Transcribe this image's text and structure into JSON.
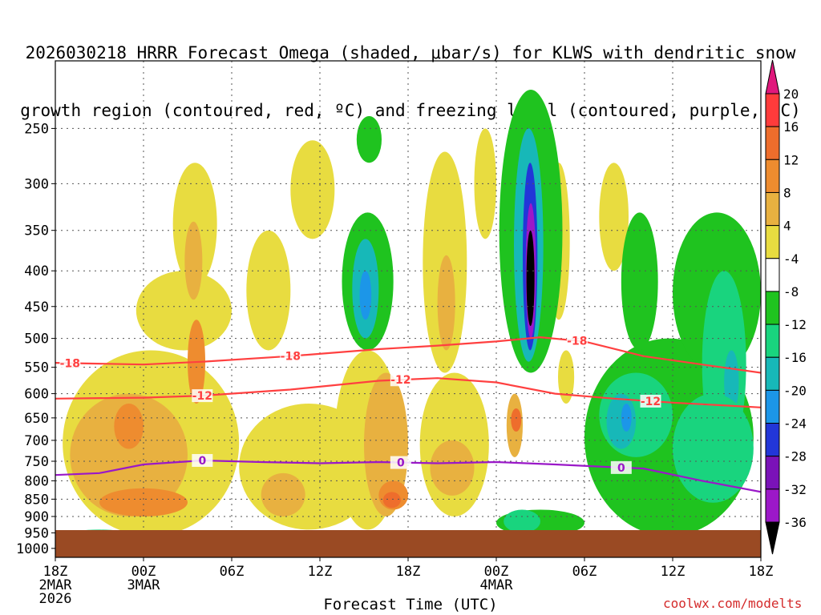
{
  "title_line1": "2026030218 HRRR Forecast Omega (shaded, μbar/s) for KLWS with dendritic snow",
  "title_line2": "growth region (contoured, red, ºC) and freezing level (contoured, purple, ºC)",
  "credit": "coolwx.com/modelts",
  "chart_data": {
    "type": "heatmap",
    "title": "2026030218 HRRR Forecast Omega (shaded, μbar/s) for KLWS with dendritic snow growth region (contoured, red, ºC) and freezing level (contoured, purple, ºC)",
    "xlabel": "Forecast Time (UTC)",
    "ylabel": "",
    "y_axis": {
      "type": "pressure-log",
      "units": "hPa",
      "range": [
        1030,
        200
      ],
      "ticks": [
        250,
        300,
        350,
        400,
        450,
        500,
        550,
        600,
        650,
        700,
        750,
        800,
        850,
        900,
        950,
        1000
      ]
    },
    "x_axis": {
      "range_hours": [
        0,
        48
      ],
      "ticks": [
        {
          "hour": 0,
          "label": "18Z",
          "sub": [
            "2MAR",
            "2026"
          ]
        },
        {
          "hour": 6,
          "label": "00Z",
          "sub": [
            "3MAR"
          ]
        },
        {
          "hour": 12,
          "label": "06Z",
          "sub": []
        },
        {
          "hour": 18,
          "label": "12Z",
          "sub": []
        },
        {
          "hour": 24,
          "label": "18Z",
          "sub": []
        },
        {
          "hour": 30,
          "label": "00Z",
          "sub": [
            "4MAR"
          ]
        },
        {
          "hour": 36,
          "label": "06Z",
          "sub": []
        },
        {
          "hour": 42,
          "label": "12Z",
          "sub": []
        },
        {
          "hour": 48,
          "label": "18Z",
          "sub": []
        }
      ]
    },
    "colorbar": {
      "levels": [
        "20",
        "16",
        "12",
        "8",
        "4",
        "-4",
        "-8",
        "-12",
        "-16",
        "-20",
        "-24",
        "-28",
        "-32",
        "-36"
      ],
      "colors": [
        "#ff3b3b",
        "#ee6d2c",
        "#ee8c2f",
        "#e8b140",
        "#e8dc40",
        "#ffffff",
        "#1fc31f",
        "#19d47e",
        "#17b8b8",
        "#1c96e8",
        "#2236d8",
        "#7a12b8",
        "#9c18c8",
        "#9a9a9a",
        "#000000"
      ],
      "top_color": "#e0187c"
    },
    "omega_cells": [
      {
        "t0": 0.5,
        "t1": 12.5,
        "p0": 520,
        "p1": 960,
        "v": 6
      },
      {
        "t0": 1,
        "t1": 9,
        "p0": 600,
        "p1": 900,
        "v": 10
      },
      {
        "t0": 4,
        "t1": 6,
        "p0": 620,
        "p1": 720,
        "v": 14
      },
      {
        "t0": 3,
        "t1": 9,
        "p0": 820,
        "p1": 900,
        "v": 14
      },
      {
        "t0": 5.5,
        "t1": 12,
        "p0": 400,
        "p1": 520,
        "v": 6
      },
      {
        "t0": 8,
        "t1": 11,
        "p0": 280,
        "p1": 420,
        "v": 6
      },
      {
        "t0": 8.8,
        "t1": 10,
        "p0": 340,
        "p1": 440,
        "v": 10
      },
      {
        "t0": 9,
        "t1": 10.2,
        "p0": 470,
        "p1": 620,
        "v": 14
      },
      {
        "t0": 13,
        "t1": 16,
        "p0": 350,
        "p1": 520,
        "v": 6
      },
      {
        "t0": 12.5,
        "t1": 22,
        "p0": 620,
        "p1": 940,
        "v": 6
      },
      {
        "t0": 14,
        "t1": 17,
        "p0": 780,
        "p1": 900,
        "v": 10
      },
      {
        "t0": 19,
        "t1": 23.5,
        "p0": 520,
        "p1": 940,
        "v": 6
      },
      {
        "t0": 21,
        "t1": 24,
        "p0": 560,
        "p1": 900,
        "v": 10
      },
      {
        "t0": 22,
        "t1": 24,
        "p0": 800,
        "p1": 880,
        "v": 14
      },
      {
        "t0": 22.3,
        "t1": 23.5,
        "p0": 830,
        "p1": 875,
        "v": 18
      },
      {
        "t0": 16,
        "t1": 19,
        "p0": 260,
        "p1": 360,
        "v": 6
      },
      {
        "t0": 25,
        "t1": 28,
        "p0": 270,
        "p1": 560,
        "v": 6
      },
      {
        "t0": 26,
        "t1": 27.2,
        "p0": 380,
        "p1": 520,
        "v": 10
      },
      {
        "t0": 24.8,
        "t1": 29.5,
        "p0": 560,
        "p1": 900,
        "v": 6
      },
      {
        "t0": 25.5,
        "t1": 28.5,
        "p0": 700,
        "p1": 840,
        "v": 10
      },
      {
        "t0": 28.5,
        "t1": 30,
        "p0": 250,
        "p1": 360,
        "v": 6
      },
      {
        "t0": 30.7,
        "t1": 31.8,
        "p0": 600,
        "p1": 740,
        "v": 10
      },
      {
        "t0": 31,
        "t1": 31.7,
        "p0": 630,
        "p1": 680,
        "v": 18
      },
      {
        "t0": 33.5,
        "t1": 35,
        "p0": 280,
        "p1": 470,
        "v": 6
      },
      {
        "t0": 34.2,
        "t1": 35.3,
        "p0": 520,
        "p1": 620,
        "v": 6
      },
      {
        "t0": 37,
        "t1": 39,
        "p0": 280,
        "p1": 400,
        "v": 6
      },
      {
        "t0": 19.5,
        "t1": 23,
        "p0": 330,
        "p1": 520,
        "v": -6
      },
      {
        "t0": 20.2,
        "t1": 22,
        "p0": 360,
        "p1": 500,
        "v": -14
      },
      {
        "t0": 20.7,
        "t1": 21.5,
        "p0": 400,
        "p1": 470,
        "v": -18
      },
      {
        "t0": 20.5,
        "t1": 22.2,
        "p0": 240,
        "p1": 280,
        "v": -6
      },
      {
        "t0": 30.2,
        "t1": 34.5,
        "p0": 220,
        "p1": 560,
        "v": -6
      },
      {
        "t0": 31.2,
        "t1": 33.2,
        "p0": 250,
        "p1": 540,
        "v": -12
      },
      {
        "t0": 31.8,
        "t1": 32.8,
        "p0": 280,
        "p1": 520,
        "v": -22
      },
      {
        "t0": 32,
        "t1": 32.7,
        "p0": 320,
        "p1": 500,
        "v": -30
      },
      {
        "t0": 32.05,
        "t1": 32.6,
        "p0": 350,
        "p1": 480,
        "v": -38
      },
      {
        "t0": 36,
        "t1": 47.5,
        "p0": 500,
        "p1": 960,
        "v": -6
      },
      {
        "t0": 37,
        "t1": 42,
        "p0": 560,
        "p1": 740,
        "v": -10
      },
      {
        "t0": 37.5,
        "t1": 39.5,
        "p0": 600,
        "p1": 720,
        "v": -14
      },
      {
        "t0": 38.5,
        "t1": 39.2,
        "p0": 620,
        "p1": 680,
        "v": -18
      },
      {
        "t0": 38.5,
        "t1": 41,
        "p0": 330,
        "p1": 520,
        "v": -6
      },
      {
        "t0": 42,
        "t1": 48,
        "p0": 330,
        "p1": 560,
        "v": -6
      },
      {
        "t0": 44,
        "t1": 47,
        "p0": 400,
        "p1": 740,
        "v": -10
      },
      {
        "t0": 45.5,
        "t1": 46.5,
        "p0": 520,
        "p1": 640,
        "v": -14
      },
      {
        "t0": 42,
        "t1": 47.5,
        "p0": 600,
        "p1": 860,
        "v": -10
      },
      {
        "t0": 30,
        "t1": 36,
        "p0": 880,
        "p1": 960,
        "v": -6
      },
      {
        "t0": 30.5,
        "t1": 33,
        "p0": 880,
        "p1": 950,
        "v": -10
      },
      {
        "t0": 1,
        "t1": 5,
        "p0": 940,
        "p1": 965,
        "v": -8
      }
    ],
    "contours": [
      {
        "name": "dendritic -18 ºC isotherm",
        "color": "#ff4040",
        "label": "-18",
        "label_hours": [
          1,
          16,
          35.5
        ],
        "points": [
          [
            0,
            542
          ],
          [
            6,
            545
          ],
          [
            10,
            540
          ],
          [
            16,
            530
          ],
          [
            22,
            518
          ],
          [
            26,
            512
          ],
          [
            30,
            505
          ],
          [
            33,
            498
          ],
          [
            36,
            505
          ],
          [
            40,
            530
          ],
          [
            44,
            545
          ],
          [
            48,
            560
          ]
        ]
      },
      {
        "name": "dendritic -12 ºC isotherm",
        "color": "#ff4040",
        "label": "-12",
        "label_hours": [
          10,
          23.5,
          40.5
        ],
        "points": [
          [
            0,
            610
          ],
          [
            6,
            608
          ],
          [
            10,
            604
          ],
          [
            16,
            592
          ],
          [
            22,
            575
          ],
          [
            26,
            570
          ],
          [
            30,
            578
          ],
          [
            34,
            600
          ],
          [
            38,
            610
          ],
          [
            42,
            618
          ],
          [
            48,
            628
          ]
        ]
      },
      {
        "name": "freezing level 0 ºC",
        "color": "#9a18c8",
        "label": "0",
        "label_hours": [
          10,
          23.5,
          38.5
        ],
        "points": [
          [
            0,
            785
          ],
          [
            3,
            780
          ],
          [
            6,
            758
          ],
          [
            10,
            748
          ],
          [
            14,
            752
          ],
          [
            18,
            755
          ],
          [
            22,
            752
          ],
          [
            26,
            755
          ],
          [
            30,
            752
          ],
          [
            34,
            758
          ],
          [
            38,
            765
          ],
          [
            40,
            768
          ],
          [
            44,
            800
          ],
          [
            48,
            830
          ]
        ]
      }
    ]
  }
}
